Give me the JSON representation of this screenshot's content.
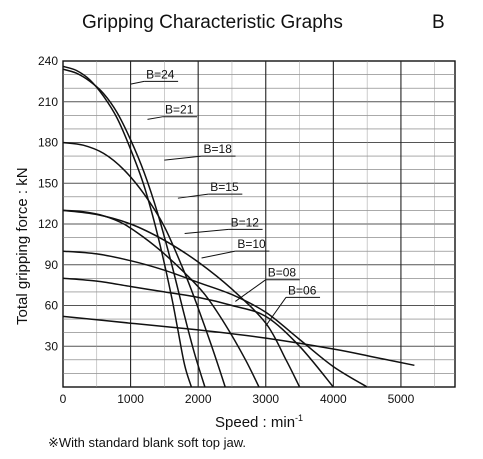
{
  "chart_data": {
    "type": "line",
    "title": "Gripping Characteristic Graphs",
    "title_suffix": "B",
    "xlabel": "Speed : min",
    "xlabel_sup": "-1",
    "ylabel": "Total gripping force : kN",
    "footnote": "※With standard blank soft top jaw.",
    "xlim": [
      0,
      5800
    ],
    "ylim": [
      0,
      240
    ],
    "x_ticks": [
      0,
      1000,
      2000,
      3000,
      4000,
      5000
    ],
    "y_ticks": [
      30,
      60,
      90,
      120,
      150,
      180,
      210,
      240
    ],
    "x_tick_labels": [
      "0",
      "1000",
      "2000",
      "3000",
      "4000",
      "5000"
    ],
    "y_tick_labels": [
      "30",
      "60",
      "90",
      "120",
      "150",
      "180",
      "210",
      "240"
    ],
    "x_grid_step": 500,
    "y_grid_step": 10,
    "grid": true,
    "series": [
      {
        "name": "B-24",
        "x": [
          0,
          200,
          400,
          600,
          800,
          1000,
          1200,
          1400,
          1600,
          1700,
          1800,
          1900
        ],
        "y": [
          236,
          233,
          226,
          214,
          198,
          175,
          148,
          112,
          68,
          42,
          16,
          0
        ]
      },
      {
        "name": "B-21",
        "x": [
          0,
          200,
          400,
          600,
          800,
          1000,
          1200,
          1400,
          1600,
          1800,
          1950,
          2100
        ],
        "y": [
          234,
          231,
          225,
          216,
          202,
          182,
          158,
          128,
          92,
          52,
          24,
          0
        ]
      },
      {
        "name": "B-18",
        "x": [
          0,
          300,
          600,
          900,
          1200,
          1500,
          1800,
          2000,
          2200,
          2400
        ],
        "y": [
          180,
          178,
          172,
          160,
          142,
          118,
          84,
          58,
          30,
          0
        ]
      },
      {
        "name": "B-15",
        "x": [
          0,
          300,
          600,
          900,
          1200,
          1500,
          1800,
          2100,
          2400,
          2700,
          2900
        ],
        "y": [
          130,
          129,
          126,
          120,
          110,
          98,
          84,
          68,
          46,
          20,
          0
        ]
      },
      {
        "name": "B-12",
        "x": [
          0,
          500,
          1000,
          1500,
          2000,
          2500,
          3000,
          3300,
          3500
        ],
        "y": [
          130,
          127,
          120,
          108,
          92,
          72,
          47,
          20,
          0
        ]
      },
      {
        "name": "B-10",
        "x": [
          0,
          500,
          1000,
          1500,
          2000,
          2500,
          3000,
          3500,
          4000,
          4500
        ],
        "y": [
          100,
          98,
          93,
          86,
          77,
          68,
          55,
          35,
          15,
          0
        ]
      },
      {
        "name": "B-08",
        "x": [
          0,
          500,
          1000,
          1500,
          2000,
          2500,
          3000,
          3500,
          4000
        ],
        "y": [
          80,
          78,
          74,
          70,
          66,
          60,
          52,
          30,
          0
        ]
      },
      {
        "name": "B-06",
        "x": [
          0,
          1000,
          2000,
          3000,
          4000,
          4600,
          5200
        ],
        "y": [
          52,
          47,
          42,
          36,
          28,
          22,
          16
        ]
      }
    ],
    "label_anchors": [
      {
        "text": "B=24",
        "lx": 1000,
        "ly": 223,
        "tx": 1200,
        "ty": 225
      },
      {
        "text": "B=21",
        "lx": 1250,
        "ly": 197,
        "tx": 1480,
        "ty": 199
      },
      {
        "text": "B=18",
        "lx": 1500,
        "ly": 167,
        "tx": 2050,
        "ty": 170
      },
      {
        "text": "B=15",
        "lx": 1700,
        "ly": 139,
        "tx": 2150,
        "ty": 142
      },
      {
        "text": "B=12",
        "lx": 1800,
        "ly": 113,
        "tx": 2450,
        "ty": 116
      },
      {
        "text": "B=10",
        "lx": 2050,
        "ly": 95,
        "tx": 2550,
        "ty": 100
      },
      {
        "text": "B=08",
        "lx": 2550,
        "ly": 63,
        "tx": 3000,
        "ty": 79
      },
      {
        "text": "B=06",
        "lx": 3000,
        "ly": 45,
        "tx": 3300,
        "ty": 66
      }
    ]
  }
}
